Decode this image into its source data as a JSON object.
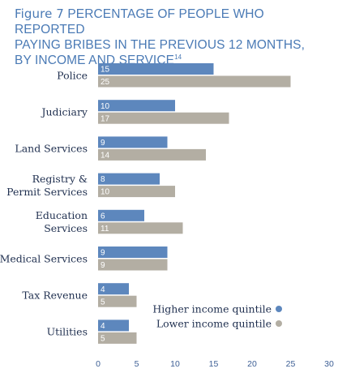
{
  "title": {
    "figure": "Figure 7",
    "line1": "PERCENTAGE OF PEOPLE WHO REPORTED",
    "line2": "PAYING BRIBES IN THE PREVIOUS 12 MONTHS,",
    "line3": "BY INCOME AND SERVICE",
    "footnote": "14"
  },
  "colors": {
    "higher": "#5d87bd",
    "lower": "#b3aea3",
    "title": "#4a7ab5",
    "axis": "#3d5f95"
  },
  "chart_data": {
    "type": "bar",
    "orientation": "horizontal",
    "categories": [
      [
        "Police"
      ],
      [
        "Judiciary"
      ],
      [
        "Land Services"
      ],
      [
        "Registry &",
        "Permit Services"
      ],
      [
        "Education",
        "Services"
      ],
      [
        "Medical Services"
      ],
      [
        "Tax Revenue"
      ],
      [
        "Utilities"
      ]
    ],
    "series": [
      {
        "name": "Higher income quintile",
        "values": [
          15,
          10,
          9,
          8,
          6,
          9,
          4,
          4
        ]
      },
      {
        "name": "Lower income quintile",
        "values": [
          25,
          17,
          14,
          10,
          11,
          9,
          5,
          5
        ]
      }
    ],
    "xlim": [
      0,
      30
    ],
    "xticks": [
      "0",
      "5",
      "10",
      "15",
      "20",
      "25",
      "30"
    ],
    "grid": false,
    "legend_position": "bottom-right"
  }
}
